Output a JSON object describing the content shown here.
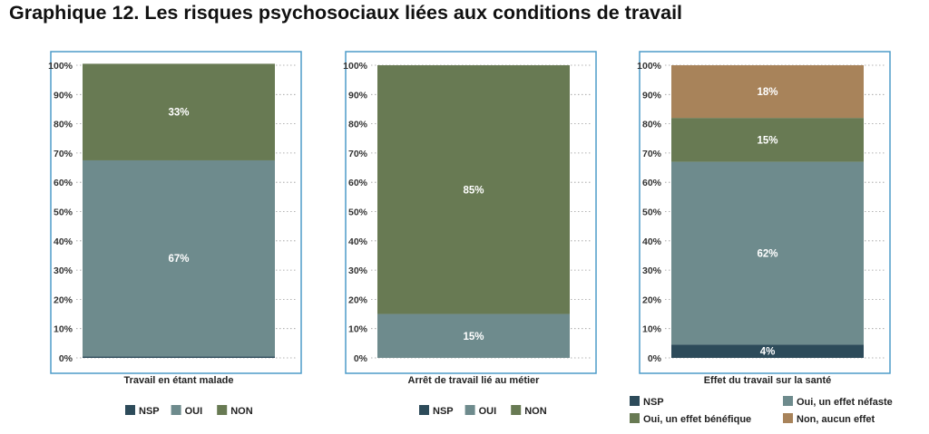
{
  "title": "Graphique 12. Les risques psychosociaux liées aux conditions de travail",
  "colors": {
    "nsp": "#2d4b5a",
    "oui": "#6e8b8d",
    "non": "#687a53",
    "non_effet": "#a8835a",
    "frame": "#4d9cc9",
    "grid": "#9a9a9a"
  },
  "chart_data": [
    {
      "type": "bar",
      "stacked": true,
      "category": "Travail en étant malade",
      "ylim": [
        0,
        100
      ],
      "yticks": [
        "0%",
        "10%",
        "20%",
        "30%",
        "40%",
        "50%",
        "60%",
        "70%",
        "80%",
        "90%",
        "100%"
      ],
      "grid": true,
      "series": [
        {
          "name": "NSP",
          "value": 0.5,
          "label": "",
          "color": "#2d4b5a"
        },
        {
          "name": "OUI",
          "value": 67,
          "label": "67%",
          "color": "#6e8b8d"
        },
        {
          "name": "NON",
          "value": 33,
          "label": "33%",
          "color": "#687a53"
        }
      ],
      "legend": {
        "position": "bottom",
        "items": [
          {
            "name": "NSP",
            "color": "#2d4b5a"
          },
          {
            "name": "OUI",
            "color": "#6e8b8d"
          },
          {
            "name": "NON",
            "color": "#687a53"
          }
        ]
      }
    },
    {
      "type": "bar",
      "stacked": true,
      "category": "Arrêt de travail lié au métier",
      "ylim": [
        0,
        100
      ],
      "yticks": [
        "0%",
        "10%",
        "20%",
        "30%",
        "40%",
        "50%",
        "60%",
        "70%",
        "80%",
        "90%",
        "100%"
      ],
      "grid": true,
      "series": [
        {
          "name": "NSP",
          "value": 0,
          "label": "",
          "color": "#2d4b5a"
        },
        {
          "name": "OUI",
          "value": 15,
          "label": "15%",
          "color": "#6e8b8d"
        },
        {
          "name": "NON",
          "value": 85,
          "label": "85%",
          "color": "#687a53"
        }
      ],
      "legend": {
        "position": "bottom",
        "items": [
          {
            "name": "NSP",
            "color": "#2d4b5a"
          },
          {
            "name": "OUI",
            "color": "#6e8b8d"
          },
          {
            "name": "NON",
            "color": "#687a53"
          }
        ]
      }
    },
    {
      "type": "bar",
      "stacked": true,
      "category": "Effet du travail sur la santé",
      "ylim": [
        0,
        100
      ],
      "yticks": [
        "0%",
        "10%",
        "20%",
        "30%",
        "40%",
        "50%",
        "60%",
        "70%",
        "80%",
        "90%",
        "100%"
      ],
      "grid": true,
      "series": [
        {
          "name": "NSP",
          "value": 4.5,
          "label": "4%",
          "color": "#2d4b5a"
        },
        {
          "name": "Oui, un effet néfaste",
          "value": 62.5,
          "label": "62%",
          "color": "#6e8b8d"
        },
        {
          "name": "Oui, un effet bénéfique",
          "value": 15,
          "label": "15%",
          "color": "#687a53"
        },
        {
          "name": "Non, aucun effet",
          "value": 18,
          "label": "18%",
          "color": "#a8835a"
        }
      ],
      "legend": {
        "position": "bottom",
        "items": [
          {
            "name": "NSP",
            "color": "#2d4b5a"
          },
          {
            "name": "Oui, un effet néfaste",
            "color": "#6e8b8d"
          },
          {
            "name": "Oui, un effet bénéfique",
            "color": "#687a53"
          },
          {
            "name": "Non, aucun effet",
            "color": "#a8835a"
          }
        ]
      }
    }
  ]
}
